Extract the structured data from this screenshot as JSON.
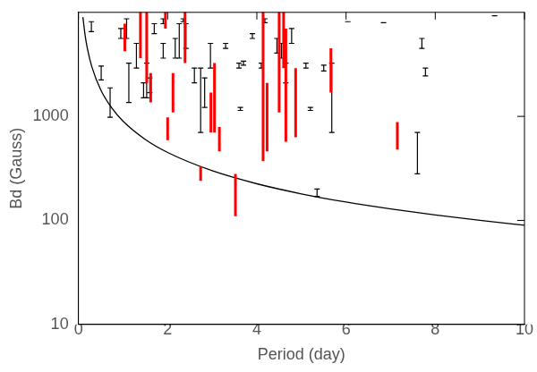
{
  "chart_data": {
    "type": "scatter",
    "x_label": "Period (day)",
    "y_label": "Bd (Gauss)",
    "xlim": [
      0,
      10
    ],
    "xticks": [
      0,
      2,
      4,
      6,
      8,
      10
    ],
    "ylim": [
      10,
      10000
    ],
    "yticks": [
      10,
      100,
      1000
    ],
    "log": "y",
    "grid": false,
    "series": [
      {
        "type": "line",
        "color": "#000000",
        "line_style": "solid",
        "x": [
          0.1,
          0.15,
          0.2,
          0.3,
          0.5,
          0.75,
          1,
          1.5,
          2,
          3,
          4,
          5,
          6,
          7,
          8,
          9,
          10
        ],
        "values": [
          9000,
          6000,
          4500,
          3000,
          1800,
          1200,
          900,
          600,
          450,
          300,
          225,
          180,
          150,
          129,
          113,
          100,
          90
        ]
      },
      {
        "type": "errorbar",
        "color": "#000000",
        "line_style": "capped",
        "x": [
          0.29,
          0.51,
          0.71,
          0.95,
          1.08,
          1.13,
          1.3,
          1.46,
          1.53,
          1.6,
          1.7,
          1.9,
          1.9,
          2.17,
          2.26,
          2.35,
          2.41,
          2.6,
          2.74,
          2.83,
          2.96,
          3.3,
          3.6,
          3.63,
          3.7,
          3.9,
          4.1,
          4.18,
          4.45,
          4.55,
          4.65,
          4.78,
          5.1,
          5.2,
          5.35,
          5.5,
          5.68,
          6.04,
          6.84,
          7.6,
          7.7,
          7.78,
          9.33
        ],
        "low": [
          6530,
          2240,
          980,
          5610,
          5610,
          1360,
          2910,
          1510,
          1510,
          1690,
          6250,
          7780,
          3630,
          3630,
          3630,
          8130,
          4510,
          2100,
          700,
          1220,
          2910,
          4510,
          2910,
          1140,
          3110,
          5610,
          2910,
          7950,
          4050,
          3630,
          2100,
          5030,
          2910,
          1140,
          170,
          2730,
          700,
          8130,
          7950,
          280,
          4510,
          2450,
          9270
        ],
        "high": [
          8130,
          3040,
          1880,
          6980,
          8670,
          3250,
          5030,
          2100,
          3250,
          2340,
          7780,
          8670,
          5030,
          5610,
          7780,
          8670,
          7780,
          2910,
          2910,
          2340,
          5030,
          5030,
          3250,
          1220,
          3400,
          6250,
          3250,
          8670,
          5610,
          5030,
          3250,
          6980,
          3250,
          1220,
          200,
          3110,
          3250,
          8130,
          7950,
          700,
          5610,
          2910,
          9270
        ]
      },
      {
        "type": "errorbar",
        "color": "#ff0000",
        "line_style": "thick",
        "x": [
          1.04,
          1.39,
          1.53,
          1.62,
          1.95,
          2.0,
          2.12,
          2.39,
          2.74,
          2.97,
          3.05,
          3.16,
          3.52,
          4.14,
          4.23,
          4.5,
          4.6,
          4.65,
          4.87,
          5.66,
          7.15
        ],
        "low": [
          4230,
          3630,
          2100,
          1360,
          6980,
          590,
          1090,
          3250,
          240,
          700,
          700,
          460,
          110,
          370,
          460,
          1090,
          2910,
          570,
          630,
          1690,
          480
        ],
        "high": [
          7780,
          11000,
          11000,
          2610,
          11000,
          980,
          2610,
          11000,
          330,
          1690,
          3250,
          790,
          280,
          11000,
          2100,
          11000,
          11000,
          6980,
          2910,
          4510,
          880
        ]
      }
    ]
  }
}
